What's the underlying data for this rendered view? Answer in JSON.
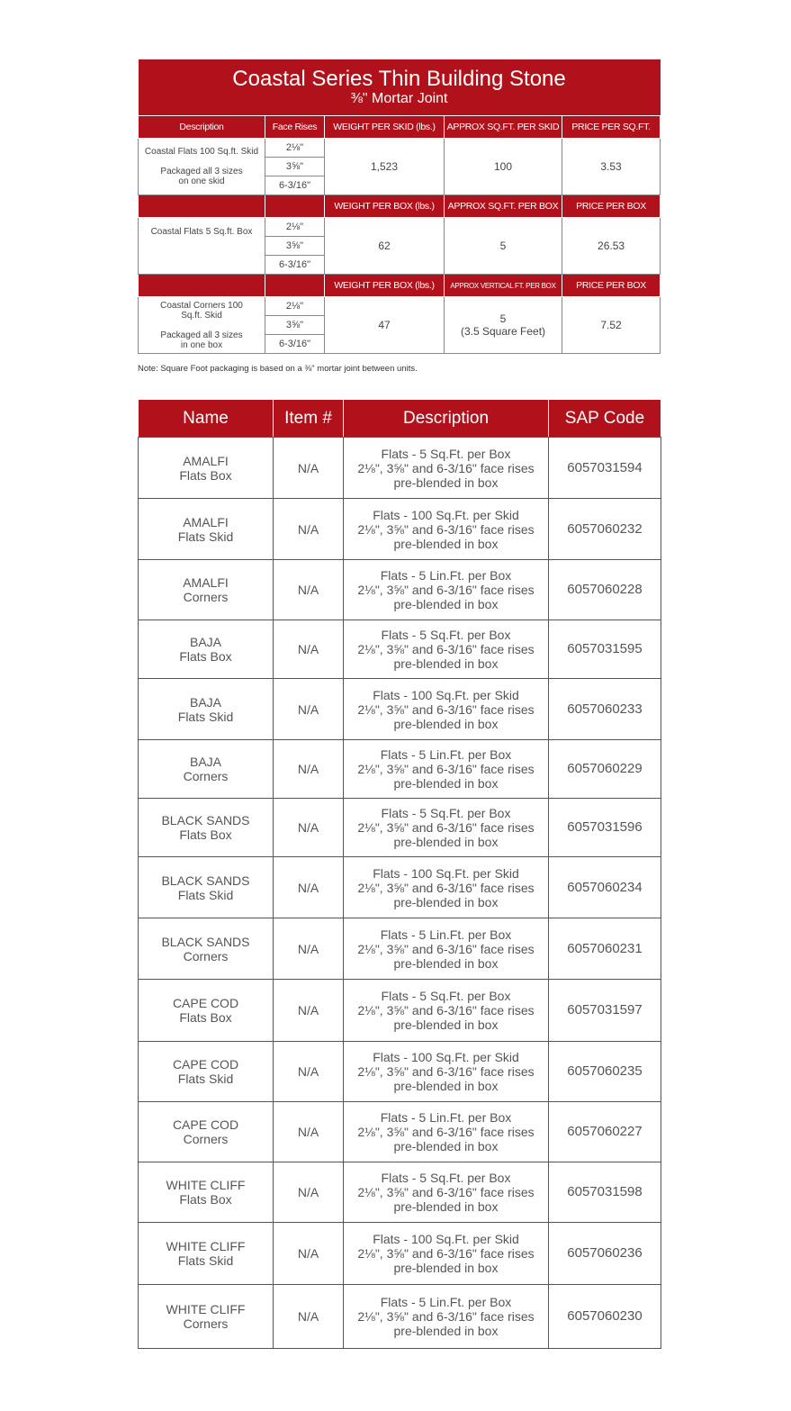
{
  "title": "Coastal Series Thin Building Stone",
  "subtitle": "⅜\" Mortar Joint",
  "spec_table": {
    "headers": [
      "Description",
      "Face Rises",
      "WEIGHT PER SKID (lbs.)",
      "APPROX SQ.FT. PER SKID",
      "PRICE PER SQ.FT."
    ],
    "rises": [
      "2⅛\"",
      "3⅝\"",
      "6-3/16\""
    ],
    "groups": [
      {
        "desc1": "Coastal Flats 100 Sq.ft. Skid",
        "desc2": "Packaged all 3 sizes",
        "desc3": "on one skid",
        "weight": "1,523",
        "area": "100",
        "area2": "",
        "price": "3.53"
      },
      {
        "h_weight": "WEIGHT PER BOX (lbs.)",
        "h_area": "APPROX SQ.FT. PER BOX",
        "h_price": "PRICE PER BOX",
        "desc1": "Coastal Flats 5 Sq.ft. Box",
        "weight": "62",
        "area": "5",
        "price": "26.53"
      },
      {
        "h_weight": "WEIGHT PER BOX (lbs.)",
        "h_area": "APPROX VERTICAL FT. PER BOX",
        "h_price": "PRICE PER BOX",
        "desc1": "Coastal Corners 100",
        "desc1b": "Sq.ft. Skid",
        "desc2": "Packaged all 3 sizes",
        "desc3": "in one box",
        "weight": "47",
        "area": "5",
        "area2": "(3.5 Square Feet)",
        "price": "7.52"
      }
    ],
    "note": "Note: Square Foot packaging is based on a ⅜\" mortar joint between units."
  },
  "product_table": {
    "headers": [
      "Name",
      "Item #",
      "Description",
      "SAP Code"
    ],
    "rows": [
      {
        "name": "AMALFI",
        "type": "Flats Box",
        "item": "N/A",
        "d1": "Flats - 5 Sq.Ft. per Box",
        "sap": "6057031594"
      },
      {
        "name": "AMALFI",
        "type": "Flats Skid",
        "item": "N/A",
        "d1": "Flats - 100 Sq.Ft. per Skid",
        "sap": "6057060232"
      },
      {
        "name": "AMALFI",
        "type": "Corners",
        "item": "N/A",
        "d1": "Flats - 5 Lin.Ft. per Box",
        "sap": "6057060228"
      },
      {
        "name": "BAJA",
        "type": "Flats Box",
        "item": "N/A",
        "d1": "Flats - 5 Sq.Ft. per Box",
        "sap": "6057031595"
      },
      {
        "name": "BAJA",
        "type": "Flats Skid",
        "item": "N/A",
        "d1": "Flats - 100 Sq.Ft. per Skid",
        "sap": "6057060233"
      },
      {
        "name": "BAJA",
        "type": "Corners",
        "item": "N/A",
        "d1": "Flats - 5 Lin.Ft. per Box",
        "sap": "6057060229"
      },
      {
        "name": "BLACK SANDS",
        "type": "Flats Box",
        "item": "N/A",
        "d1": "Flats - 5 Sq.Ft. per Box",
        "sap": "6057031596"
      },
      {
        "name": "BLACK SANDS",
        "type": "Flats Skid",
        "item": "N/A",
        "d1": "Flats - 100 Sq.Ft. per Skid",
        "sap": "6057060234"
      },
      {
        "name": "BLACK SANDS",
        "type": "Corners",
        "item": "N/A",
        "d1": "Flats - 5 Lin.Ft. per Box",
        "sap": "6057060231"
      },
      {
        "name": "CAPE COD",
        "type": "Flats Box",
        "item": "N/A",
        "d1": "Flats - 5 Sq.Ft. per Box",
        "sap": "6057031597"
      },
      {
        "name": "CAPE COD",
        "type": "Flats Skid",
        "item": "N/A",
        "d1": "Flats - 100 Sq.Ft. per Skid",
        "sap": "6057060235"
      },
      {
        "name": "CAPE COD",
        "type": "Corners",
        "item": "N/A",
        "d1": "Flats - 5 Lin.Ft. per Box",
        "sap": "6057060227"
      },
      {
        "name": "WHITE CLIFF",
        "type": "Flats Box",
        "item": "N/A",
        "d1": "Flats - 5 Sq.Ft. per Box",
        "sap": "6057031598"
      },
      {
        "name": "WHITE CLIFF",
        "type": "Flats Skid",
        "item": "N/A",
        "d1": "Flats - 100 Sq.Ft. per Skid",
        "sap": "6057060236"
      },
      {
        "name": "WHITE CLIFF",
        "type": "Corners",
        "item": "N/A",
        "d1": "Flats - 5 Lin.Ft. per Box",
        "sap": "6057060230"
      }
    ],
    "d2": "2⅛\", 3⅝\" and 6-3/16\" face rises",
    "d3": "pre-blended in box"
  }
}
